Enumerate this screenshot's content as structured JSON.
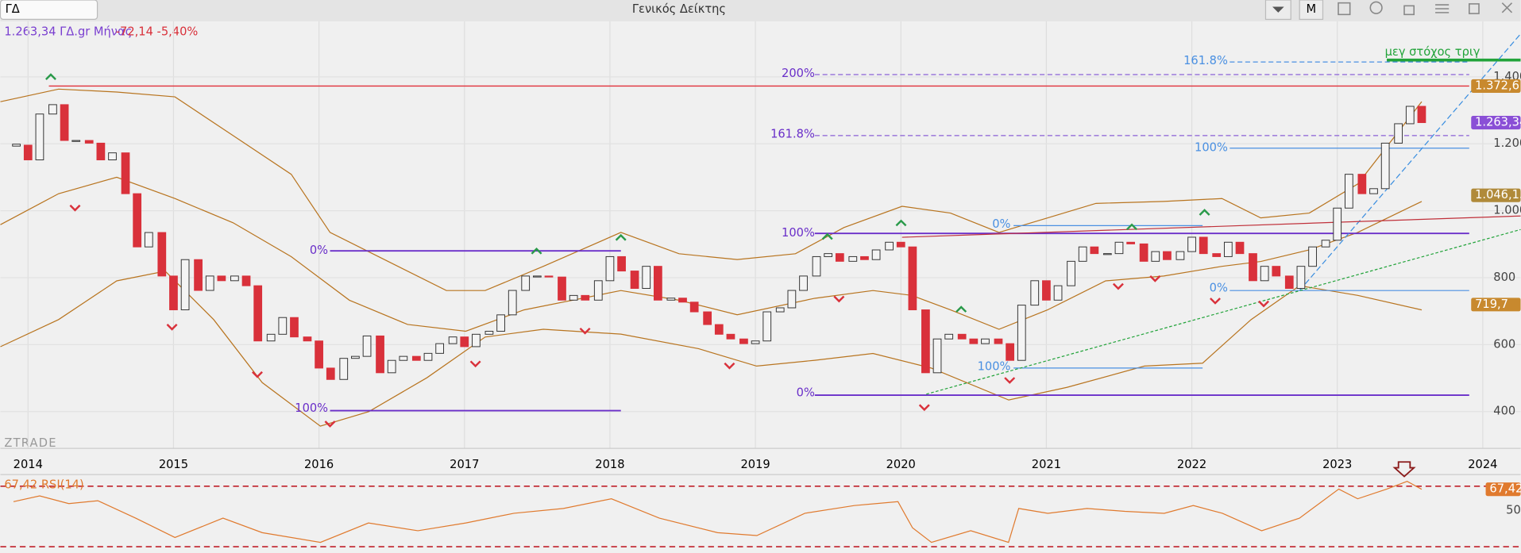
{
  "window": {
    "symbol": "ΓΔ",
    "title": "Γενικός Δείκτης",
    "period_button": "M"
  },
  "info": {
    "price": "1.263,34 ΓΔ.gr Μήνας",
    "change": "-72,14 -5,40%"
  },
  "watermark": "ZTRADE",
  "annotations": {
    "target": "μεγ στόχος τριγ",
    "fib": [
      "0%",
      "100%",
      "200%",
      "161.8%",
      "100%",
      "0%",
      "161.8%",
      "100%",
      "0%",
      "0%",
      "100%"
    ]
  },
  "chart_data": {
    "type": "candlestick",
    "x": [
      2013.92,
      2014,
      2014.08,
      2014.17,
      2014.25,
      2014.33,
      2014.42,
      2014.5,
      2014.58,
      2014.67,
      2014.75,
      2014.83,
      2014.92,
      2015,
      2015.08,
      2015.17,
      2015.25,
      2015.33,
      2015.42,
      2015.5,
      2015.58,
      2015.67,
      2015.75,
      2015.83,
      2015.92,
      2016,
      2016.08,
      2016.17,
      2016.25,
      2016.33,
      2016.42,
      2016.5,
      2016.58,
      2016.67,
      2016.75,
      2016.83,
      2016.92,
      2017,
      2017.08,
      2017.17,
      2017.25,
      2017.33,
      2017.42,
      2017.5,
      2017.58,
      2017.67,
      2017.75,
      2017.83,
      2017.92,
      2018,
      2018.08,
      2018.17,
      2018.25,
      2018.33,
      2018.42,
      2018.5,
      2018.58,
      2018.67,
      2018.75,
      2018.83,
      2018.92,
      2019,
      2019.08,
      2019.17,
      2019.25,
      2019.33,
      2019.42,
      2019.5,
      2019.58,
      2019.67,
      2019.75,
      2019.83,
      2019.92,
      2020,
      2020.08,
      2020.17,
      2020.25,
      2020.33,
      2020.42,
      2020.5,
      2020.58,
      2020.67,
      2020.75,
      2020.83,
      2020.92,
      2021,
      2021.08,
      2021.17,
      2021.25,
      2021.33,
      2021.42,
      2021.5,
      2021.58,
      2021.67,
      2021.75,
      2021.83,
      2021.92,
      2022,
      2022.08,
      2022.17,
      2022.25,
      2022.33,
      2022.42,
      2022.5,
      2022.58,
      2022.67,
      2022.75,
      2022.83,
      2022.92,
      2023,
      2023.08,
      2023.17,
      2023.25,
      2023.33,
      2023.42,
      2023.5,
      2023.58
    ],
    "values": [
      1196,
      1152,
      1289,
      1317,
      1210,
      1210,
      1202,
      1152,
      1173,
      1051,
      892,
      935,
      805,
      704,
      854,
      762,
      805,
      791,
      805,
      776,
      611,
      631,
      681,
      623,
      611,
      530,
      496,
      559,
      565,
      626,
      516,
      553,
      565,
      553,
      574,
      603,
      623,
      594,
      631,
      640,
      689,
      762,
      805,
      805,
      802,
      733,
      747,
      733,
      791,
      863,
      820,
      768,
      834,
      733,
      739,
      727,
      698,
      660,
      631,
      617,
      603,
      611,
      698,
      710,
      762,
      805,
      863,
      872,
      849,
      863,
      854,
      883,
      906,
      892,
      704,
      516,
      617,
      631,
      617,
      603,
      617,
      603,
      553,
      718,
      791,
      733,
      776,
      849,
      892,
      872,
      872,
      906,
      901,
      849,
      878,
      854,
      878,
      921,
      872,
      863,
      906,
      872,
      791,
      834,
      805,
      768,
      834,
      892,
      912,
      1008,
      1109,
      1051,
      1066,
      1202,
      1260,
      1312,
      1263.34
    ],
    "up_color": "#f4f4f4",
    "down_color": "#d9313b",
    "xlim": [
      2013.81,
      2024.26
    ],
    "xticks": [
      2014,
      2015,
      2016,
      2017,
      2018,
      2019,
      2020,
      2021,
      2022,
      2023,
      2024
    ],
    "ylim": [
      290,
      1566
    ],
    "yticks": [
      400,
      600,
      800,
      {
        "value": 1000,
        "label": "1.000"
      },
      {
        "value": 1200,
        "label": "1.200"
      },
      {
        "value": 1400,
        "label": "1.400"
      }
    ],
    "price_tags": [
      {
        "value": 1372.6,
        "label": "1.372,6",
        "color": "#c8892e"
      },
      {
        "value": 1263.34,
        "label": "1.263,34",
        "color": "#8a4fd6"
      },
      {
        "value": 1046.13,
        "label": "1.046,13",
        "color": "#b08a3a"
      },
      {
        "value": 719.7,
        "label": "719,7",
        "color": "#c8892e"
      }
    ],
    "resistance_color": "#e0303a",
    "rsi": {
      "name": "67,42 RSI(14)",
      "value_label": "67,42",
      "color": "#e07a2e",
      "x": [
        2013.9,
        2014.08,
        2014.28,
        2014.48,
        2014.74,
        2015.01,
        2015.34,
        2015.61,
        2016.01,
        2016.34,
        2016.68,
        2017.01,
        2017.34,
        2017.68,
        2018.01,
        2018.34,
        2018.74,
        2019.01,
        2019.34,
        2019.68,
        2019.98,
        2020.08,
        2020.21,
        2020.48,
        2020.74,
        2020.81,
        2021.01,
        2021.28,
        2021.54,
        2021.81,
        2022.01,
        2022.21,
        2022.48,
        2022.74,
        2023.01,
        2023.14,
        2023.34,
        2023.48,
        2023.58
      ],
      "values": [
        57.2,
        62,
        55.6,
        58,
        43.6,
        27.6,
        43.6,
        31.6,
        23.6,
        39.6,
        33.2,
        39.6,
        47.6,
        51.6,
        59.6,
        43.6,
        31.6,
        29.2,
        47.6,
        54,
        57.2,
        35.6,
        23.6,
        33.2,
        23.6,
        51.6,
        47.6,
        51.6,
        49.2,
        47.6,
        54,
        47.6,
        33.2,
        43.6,
        67.6,
        59.6,
        67.6,
        74,
        67.42
      ],
      "ylim": [
        14.8,
        79.6
      ],
      "yticks": [
        50
      ],
      "levels": [
        70,
        20
      ]
    }
  }
}
